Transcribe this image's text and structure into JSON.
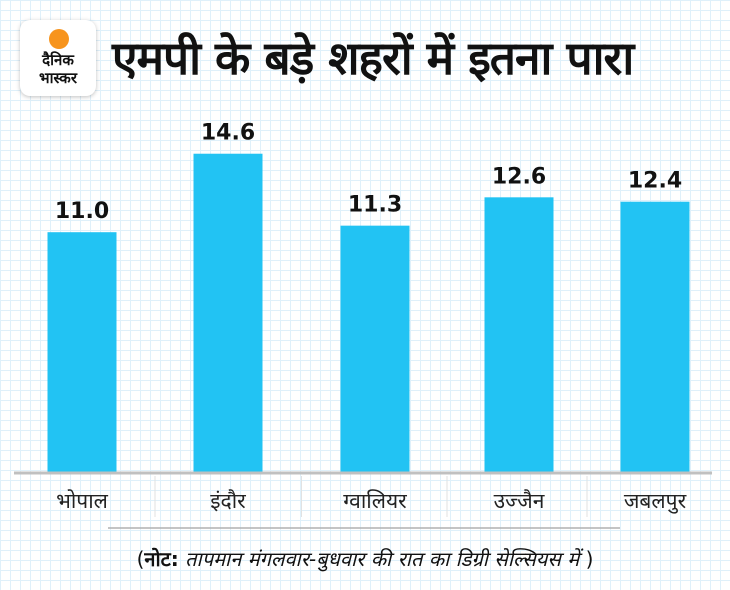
{
  "brand": {
    "line1": "दैनिक",
    "line2": "भास्कर",
    "sun_color": "#f7941d"
  },
  "title": "एमपी के बड़े शहरों में इतना पारा",
  "note": {
    "open": "(",
    "label": "नोट:",
    "text": " तापमान मंगलवार-बुधवार की रात का डिग्री सेल्सियस में ",
    "close": ")"
  },
  "chart_data": {
    "type": "bar",
    "title": "एमपी के बड़े शहरों में इतना पारा",
    "xlabel": "",
    "ylabel": "",
    "categories": [
      "भोपाल",
      "इंदौर",
      "ग्वालियर",
      "उज्जैन",
      "जबलपुर"
    ],
    "values": [
      11.0,
      14.6,
      11.3,
      12.6,
      12.4
    ],
    "data_labels": [
      "11.0",
      "14.6",
      "11.3",
      "12.6",
      "12.4"
    ],
    "unit": "डिग्री सेल्सियस",
    "ylim": [
      0,
      15
    ],
    "bar_color": "#22c3f3",
    "grid": true,
    "legend": "none"
  }
}
